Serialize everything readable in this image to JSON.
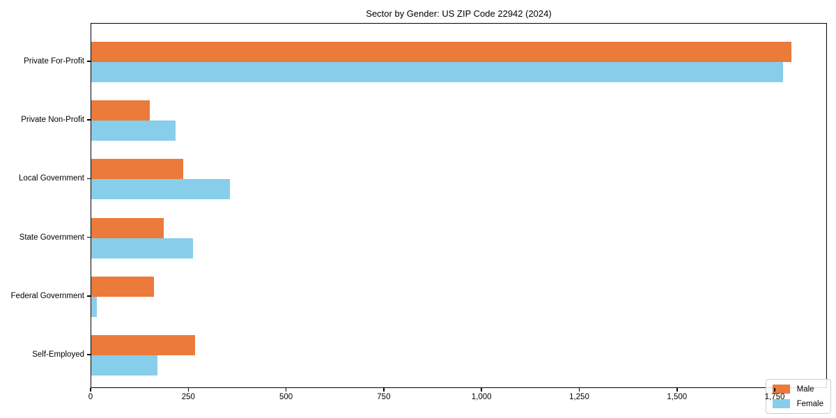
{
  "chart_data": {
    "type": "bar",
    "orientation": "horizontal",
    "title": "Sector by Gender: US ZIP Code 22942 (2024)",
    "categories": [
      "Private For-Profit",
      "Private Non-Profit",
      "Local Government",
      "State Government",
      "Federal Government",
      "Self-Employed"
    ],
    "series": [
      {
        "name": "Male",
        "color": "#EB7A3B",
        "values": [
          1790,
          150,
          235,
          185,
          160,
          265
        ]
      },
      {
        "name": "Female",
        "color": "#87CEEB",
        "values": [
          1770,
          215,
          355,
          260,
          15,
          170
        ]
      }
    ],
    "xlim": [
      0,
      1880
    ],
    "xticks": [
      0,
      250,
      500,
      750,
      1000,
      1250,
      1500,
      1750
    ],
    "xtick_labels": [
      "0",
      "250",
      "500",
      "750",
      "1,000",
      "1,250",
      "1,500",
      "1,750"
    ],
    "xlabel": "",
    "ylabel": "",
    "grid": false,
    "legend_position": "lower right",
    "background_color": "#ffffff",
    "spine_color": "#000000"
  }
}
